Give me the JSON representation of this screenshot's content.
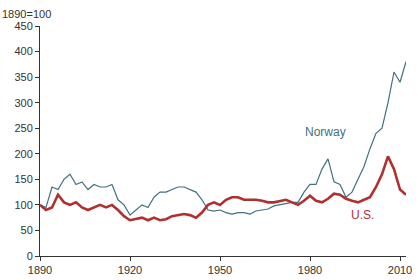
{
  "chart_data": {
    "type": "line",
    "ylabel": "1890=100",
    "x": [
      1890,
      1892,
      1894,
      1896,
      1898,
      1900,
      1902,
      1904,
      1906,
      1908,
      1910,
      1912,
      1914,
      1916,
      1918,
      1920,
      1922,
      1924,
      1926,
      1928,
      1930,
      1932,
      1934,
      1936,
      1938,
      1940,
      1942,
      1944,
      1946,
      1948,
      1950,
      1952,
      1954,
      1956,
      1958,
      1960,
      1962,
      1964,
      1966,
      1968,
      1970,
      1972,
      1974,
      1976,
      1978,
      1980,
      1982,
      1984,
      1986,
      1988,
      1990,
      1992,
      1994,
      1996,
      1998,
      2000,
      2002,
      2004,
      2006,
      2008,
      2010,
      2012
    ],
    "series": [
      {
        "name": "Norway",
        "color": "#43707f",
        "values": [
          100,
          95,
          135,
          130,
          150,
          160,
          140,
          145,
          130,
          140,
          135,
          135,
          140,
          110,
          100,
          80,
          90,
          100,
          95,
          115,
          125,
          125,
          130,
          135,
          135,
          130,
          125,
          110,
          90,
          88,
          90,
          85,
          82,
          85,
          85,
          82,
          88,
          90,
          92,
          98,
          100,
          102,
          105,
          105,
          125,
          140,
          140,
          170,
          190,
          145,
          140,
          115,
          125,
          150,
          175,
          210,
          240,
          250,
          300,
          360,
          340,
          380
        ]
      },
      {
        "name": "U.S.",
        "color": "#b03030",
        "values": [
          100,
          90,
          95,
          120,
          105,
          100,
          105,
          95,
          90,
          95,
          100,
          95,
          100,
          90,
          78,
          70,
          72,
          75,
          70,
          75,
          70,
          72,
          78,
          80,
          82,
          80,
          75,
          85,
          100,
          105,
          100,
          110,
          115,
          115,
          110,
          110,
          110,
          108,
          105,
          105,
          108,
          110,
          105,
          100,
          108,
          118,
          108,
          105,
          112,
          122,
          120,
          112,
          108,
          105,
          110,
          115,
          135,
          160,
          195,
          170,
          130,
          120
        ]
      }
    ],
    "xlim": [
      1890,
      2012
    ],
    "xticks": [
      1890,
      1920,
      1950,
      1980,
      2010
    ],
    "ylim": [
      0,
      450
    ],
    "yticks": [
      0,
      50,
      100,
      150,
      200,
      250,
      300,
      350,
      400,
      450
    ],
    "grid": false
  }
}
